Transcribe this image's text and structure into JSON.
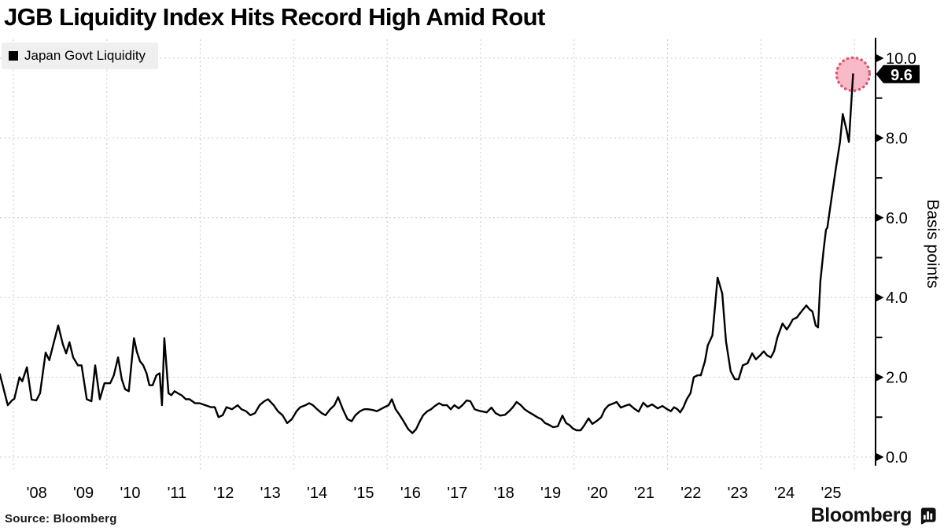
{
  "title": "JGB Liquidity Index Hits Record High Amid Rout",
  "legend": {
    "label": "Japan Govt Liquidity",
    "swatch_color": "#000000"
  },
  "source_text": "Source: Bloomberg",
  "brand": {
    "name": "Bloomberg",
    "icon": "bloomberg-terminal-icon"
  },
  "colors": {
    "line": "#000000",
    "grid": "#c9c9c9",
    "axis": "#000000",
    "legend_bg": "#efefef",
    "marker_fill": "#f5a0b2",
    "marker_dots": "#e05673",
    "tag_bg": "#000000",
    "tag_text": "#ffffff"
  },
  "chart_data": {
    "type": "line",
    "title": "JGB Liquidity Index Hits Record High Amid Rout",
    "series_name": "Japan Govt Liquidity",
    "xlabel": "",
    "ylabel": "Basis points",
    "ylim": [
      0,
      10
    ],
    "y_ticks": [
      0,
      2,
      4,
      6,
      8,
      10
    ],
    "y_tick_labels": [
      "0.0",
      "2.0",
      "4.0",
      "6.0",
      "8.0",
      "10.0"
    ],
    "y_minor_ticks": [
      1,
      3,
      5,
      7,
      9
    ],
    "x_labels": [
      "'08",
      "'09",
      "'10",
      "'11",
      "'12",
      "'13",
      "'14",
      "'15",
      "'16",
      "'17",
      "'18",
      "'19",
      "'20",
      "'21",
      "'22",
      "'23",
      "'24",
      "'25"
    ],
    "x_label_years": [
      2008.5,
      2009.5,
      2010.5,
      2011.5,
      2012.5,
      2013.5,
      2014.5,
      2015.5,
      2016.5,
      2017.5,
      2018.5,
      2019.5,
      2020.5,
      2021.5,
      2022.5,
      2023.5,
      2024.5,
      2025.5
    ],
    "x_gridline_years": [
      2008,
      2010,
      2012,
      2014,
      2016,
      2018,
      2020,
      2022,
      2024,
      2026
    ],
    "grid": true,
    "legend_position": "top-left",
    "last_value_label": "9.6",
    "last_value": 9.6,
    "points": [
      [
        2007.71,
        2.08
      ],
      [
        2007.88,
        1.3
      ],
      [
        2007.97,
        1.42
      ],
      [
        2008.02,
        1.46
      ],
      [
        2008.13,
        2.0
      ],
      [
        2008.19,
        1.9
      ],
      [
        2008.29,
        2.25
      ],
      [
        2008.39,
        1.44
      ],
      [
        2008.49,
        1.42
      ],
      [
        2008.57,
        1.6
      ],
      [
        2008.69,
        2.62
      ],
      [
        2008.77,
        2.43
      ],
      [
        2008.86,
        2.85
      ],
      [
        2008.96,
        3.3
      ],
      [
        2009.06,
        2.82
      ],
      [
        2009.13,
        2.6
      ],
      [
        2009.2,
        2.88
      ],
      [
        2009.28,
        2.5
      ],
      [
        2009.38,
        2.3
      ],
      [
        2009.46,
        2.3
      ],
      [
        2009.57,
        1.45
      ],
      [
        2009.67,
        1.4
      ],
      [
        2009.75,
        2.3
      ],
      [
        2009.85,
        1.45
      ],
      [
        2009.95,
        1.85
      ],
      [
        2010.07,
        1.85
      ],
      [
        2010.15,
        2.05
      ],
      [
        2010.24,
        2.5
      ],
      [
        2010.32,
        1.95
      ],
      [
        2010.39,
        1.7
      ],
      [
        2010.47,
        1.65
      ],
      [
        2010.58,
        2.98
      ],
      [
        2010.64,
        2.65
      ],
      [
        2010.71,
        2.4
      ],
      [
        2010.78,
        2.3
      ],
      [
        2010.85,
        2.1
      ],
      [
        2010.91,
        1.8
      ],
      [
        2010.98,
        1.8
      ],
      [
        2011.06,
        2.05
      ],
      [
        2011.13,
        2.1
      ],
      [
        2011.18,
        1.3
      ],
      [
        2011.23,
        2.98
      ],
      [
        2011.32,
        1.6
      ],
      [
        2011.38,
        1.55
      ],
      [
        2011.45,
        1.65
      ],
      [
        2011.52,
        1.6
      ],
      [
        2011.6,
        1.55
      ],
      [
        2011.69,
        1.45
      ],
      [
        2011.77,
        1.45
      ],
      [
        2011.89,
        1.35
      ],
      [
        2011.99,
        1.35
      ],
      [
        2012.11,
        1.3
      ],
      [
        2012.23,
        1.25
      ],
      [
        2012.31,
        1.25
      ],
      [
        2012.39,
        1.0
      ],
      [
        2012.48,
        1.05
      ],
      [
        2012.56,
        1.25
      ],
      [
        2012.68,
        1.2
      ],
      [
        2012.8,
        1.3
      ],
      [
        2012.88,
        1.2
      ],
      [
        2012.98,
        1.15
      ],
      [
        2013.07,
        1.05
      ],
      [
        2013.17,
        1.1
      ],
      [
        2013.27,
        1.3
      ],
      [
        2013.37,
        1.4
      ],
      [
        2013.45,
        1.45
      ],
      [
        2013.57,
        1.3
      ],
      [
        2013.66,
        1.15
      ],
      [
        2013.76,
        1.05
      ],
      [
        2013.86,
        0.85
      ],
      [
        2013.96,
        0.95
      ],
      [
        2014.06,
        1.15
      ],
      [
        2014.14,
        1.25
      ],
      [
        2014.25,
        1.3
      ],
      [
        2014.33,
        1.35
      ],
      [
        2014.41,
        1.3
      ],
      [
        2014.5,
        1.2
      ],
      [
        2014.6,
        1.1
      ],
      [
        2014.68,
        1.05
      ],
      [
        2014.78,
        1.2
      ],
      [
        2014.87,
        1.3
      ],
      [
        2014.95,
        1.5
      ],
      [
        2015.05,
        1.2
      ],
      [
        2015.15,
        0.95
      ],
      [
        2015.24,
        0.9
      ],
      [
        2015.32,
        1.05
      ],
      [
        2015.42,
        1.15
      ],
      [
        2015.51,
        1.2
      ],
      [
        2015.59,
        1.2
      ],
      [
        2015.69,
        1.18
      ],
      [
        2015.78,
        1.15
      ],
      [
        2015.86,
        1.2
      ],
      [
        2015.94,
        1.25
      ],
      [
        2016.03,
        1.3
      ],
      [
        2016.1,
        1.45
      ],
      [
        2016.18,
        1.2
      ],
      [
        2016.27,
        1.05
      ],
      [
        2016.35,
        0.9
      ],
      [
        2016.45,
        0.7
      ],
      [
        2016.54,
        0.6
      ],
      [
        2016.62,
        0.7
      ],
      [
        2016.7,
        0.9
      ],
      [
        2016.77,
        1.05
      ],
      [
        2016.86,
        1.15
      ],
      [
        2016.94,
        1.2
      ],
      [
        2017.02,
        1.28
      ],
      [
        2017.11,
        1.35
      ],
      [
        2017.19,
        1.3
      ],
      [
        2017.28,
        1.3
      ],
      [
        2017.36,
        1.2
      ],
      [
        2017.44,
        1.3
      ],
      [
        2017.53,
        1.22
      ],
      [
        2017.61,
        1.3
      ],
      [
        2017.7,
        1.42
      ],
      [
        2017.78,
        1.4
      ],
      [
        2017.87,
        1.2
      ],
      [
        2017.97,
        1.16
      ],
      [
        2018.05,
        1.14
      ],
      [
        2018.13,
        1.12
      ],
      [
        2018.23,
        1.24
      ],
      [
        2018.32,
        1.1
      ],
      [
        2018.42,
        1.04
      ],
      [
        2018.52,
        1.06
      ],
      [
        2018.61,
        1.15
      ],
      [
        2018.69,
        1.25
      ],
      [
        2018.77,
        1.38
      ],
      [
        2018.86,
        1.3
      ],
      [
        2018.94,
        1.2
      ],
      [
        2019.04,
        1.12
      ],
      [
        2019.13,
        1.06
      ],
      [
        2019.21,
        1.0
      ],
      [
        2019.3,
        0.95
      ],
      [
        2019.38,
        0.85
      ],
      [
        2019.46,
        0.81
      ],
      [
        2019.55,
        0.75
      ],
      [
        2019.65,
        0.77
      ],
      [
        2019.75,
        1.04
      ],
      [
        2019.83,
        0.85
      ],
      [
        2019.9,
        0.8
      ],
      [
        2019.97,
        0.72
      ],
      [
        2020.05,
        0.67
      ],
      [
        2020.14,
        0.67
      ],
      [
        2020.22,
        0.8
      ],
      [
        2020.31,
        0.97
      ],
      [
        2020.39,
        0.83
      ],
      [
        2020.49,
        0.91
      ],
      [
        2020.58,
        1.0
      ],
      [
        2020.66,
        1.2
      ],
      [
        2020.74,
        1.3
      ],
      [
        2020.83,
        1.34
      ],
      [
        2020.91,
        1.38
      ],
      [
        2021.0,
        1.24
      ],
      [
        2021.08,
        1.28
      ],
      [
        2021.18,
        1.32
      ],
      [
        2021.28,
        1.22
      ],
      [
        2021.38,
        1.14
      ],
      [
        2021.48,
        1.36
      ],
      [
        2021.57,
        1.26
      ],
      [
        2021.67,
        1.32
      ],
      [
        2021.79,
        1.22
      ],
      [
        2021.89,
        1.28
      ],
      [
        2021.99,
        1.2
      ],
      [
        2022.07,
        1.15
      ],
      [
        2022.14,
        1.25
      ],
      [
        2022.21,
        1.2
      ],
      [
        2022.27,
        1.12
      ],
      [
        2022.34,
        1.25
      ],
      [
        2022.41,
        1.45
      ],
      [
        2022.49,
        1.6
      ],
      [
        2022.56,
        2.0
      ],
      [
        2022.64,
        2.05
      ],
      [
        2022.71,
        2.05
      ],
      [
        2022.8,
        2.4
      ],
      [
        2022.86,
        2.8
      ],
      [
        2022.96,
        3.05
      ],
      [
        2023.07,
        4.5
      ],
      [
        2023.17,
        4.1
      ],
      [
        2023.25,
        2.9
      ],
      [
        2023.35,
        2.15
      ],
      [
        2023.44,
        1.95
      ],
      [
        2023.52,
        1.95
      ],
      [
        2023.61,
        2.3
      ],
      [
        2023.71,
        2.35
      ],
      [
        2023.81,
        2.6
      ],
      [
        2023.89,
        2.45
      ],
      [
        2023.98,
        2.55
      ],
      [
        2024.06,
        2.65
      ],
      [
        2024.13,
        2.55
      ],
      [
        2024.21,
        2.5
      ],
      [
        2024.28,
        2.65
      ],
      [
        2024.35,
        3.0
      ],
      [
        2024.46,
        3.35
      ],
      [
        2024.55,
        3.2
      ],
      [
        2024.61,
        3.3
      ],
      [
        2024.68,
        3.45
      ],
      [
        2024.77,
        3.5
      ],
      [
        2024.83,
        3.6
      ],
      [
        2024.9,
        3.7
      ],
      [
        2024.97,
        3.8
      ],
      [
        2025.04,
        3.7
      ],
      [
        2025.1,
        3.65
      ],
      [
        2025.17,
        3.3
      ],
      [
        2025.22,
        3.25
      ],
      [
        2025.27,
        4.4
      ],
      [
        2025.34,
        5.2
      ],
      [
        2025.39,
        5.7
      ],
      [
        2025.42,
        5.75
      ],
      [
        2025.51,
        6.5
      ],
      [
        2025.61,
        7.3
      ],
      [
        2025.69,
        7.9
      ],
      [
        2025.75,
        8.6
      ],
      [
        2025.83,
        8.2
      ],
      [
        2025.88,
        7.9
      ],
      [
        2025.97,
        9.6
      ]
    ]
  }
}
